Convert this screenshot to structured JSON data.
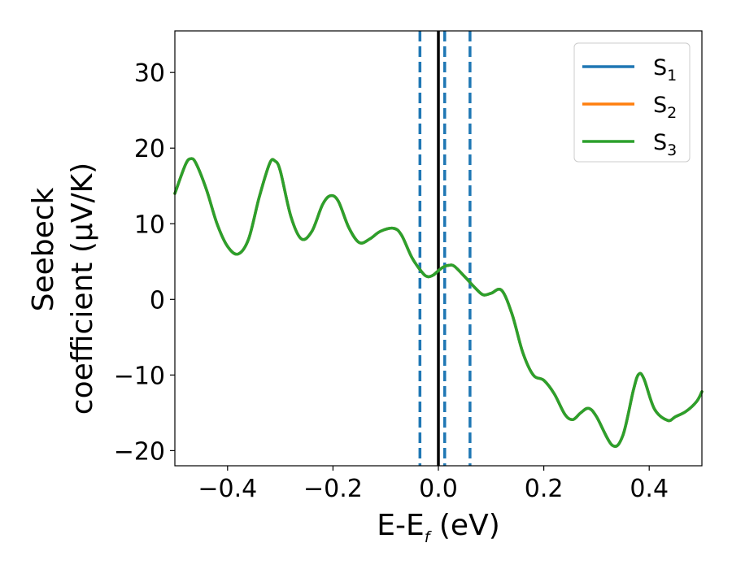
{
  "chart_data": {
    "type": "line",
    "xlabel": {
      "main": "E-E",
      "sub": "f",
      "tail": " (eV)"
    },
    "ylabel": {
      "line1": "Seebeck",
      "line2": "coefficient  (μV/K)"
    },
    "xlim": [
      -0.5,
      0.5
    ],
    "ylim": [
      -22,
      35.5
    ],
    "xticks": [
      -0.4,
      -0.2,
      0.0,
      0.2,
      0.4
    ],
    "xtick_labels": [
      "−0.4",
      "−0.2",
      "0.0",
      "0.2",
      "0.4"
    ],
    "yticks": [
      -20,
      -10,
      0,
      10,
      20,
      30
    ],
    "ytick_labels": [
      "−20",
      "−10",
      "0",
      "10",
      "20",
      "30"
    ],
    "grid": false,
    "legend_position": "top-right",
    "series": [
      {
        "name": "S",
        "name_sub": "1",
        "color": "#1f77b4",
        "x": [
          -0.5,
          -0.48,
          -0.47,
          -0.46,
          -0.44,
          -0.42,
          -0.4,
          -0.38,
          -0.36,
          -0.34,
          -0.32,
          -0.31,
          -0.3,
          -0.28,
          -0.26,
          -0.24,
          -0.22,
          -0.205,
          -0.19,
          -0.17,
          -0.15,
          -0.13,
          -0.11,
          -0.085,
          -0.07,
          -0.05,
          -0.03,
          -0.02,
          -0.01,
          0.0,
          0.01,
          0.02,
          0.03,
          0.05,
          0.07,
          0.085,
          0.1,
          0.12,
          0.14,
          0.16,
          0.18,
          0.2,
          0.22,
          0.24,
          0.255,
          0.27,
          0.285,
          0.3,
          0.33,
          0.35,
          0.37,
          0.38,
          0.39,
          0.41,
          0.435,
          0.45,
          0.47,
          0.49,
          0.5
        ],
        "y": [
          14,
          17.8,
          18.6,
          18,
          14.5,
          10,
          7,
          6,
          8,
          13.5,
          18,
          18.3,
          17,
          11,
          8,
          9,
          12.5,
          13.7,
          13,
          9.5,
          7.5,
          8,
          9,
          9.4,
          8.5,
          5.5,
          3.5,
          3,
          3.2,
          3.8,
          4.3,
          4.5,
          4.4,
          3,
          1.5,
          0.6,
          0.8,
          1.2,
          -2,
          -7,
          -10,
          -10.7,
          -12.5,
          -15.2,
          -15.9,
          -15,
          -14.4,
          -15.5,
          -19.3,
          -18,
          -12,
          -9.9,
          -10.5,
          -14.5,
          -16,
          -15.5,
          -14.8,
          -13.5,
          -12.2
        ]
      },
      {
        "name": "S",
        "name_sub": "2",
        "color": "#ff7f0e",
        "x": [
          -0.5,
          -0.48,
          -0.47,
          -0.46,
          -0.44,
          -0.42,
          -0.4,
          -0.38,
          -0.36,
          -0.34,
          -0.32,
          -0.31,
          -0.3,
          -0.28,
          -0.26,
          -0.24,
          -0.22,
          -0.205,
          -0.19,
          -0.17,
          -0.15,
          -0.13,
          -0.11,
          -0.085,
          -0.07,
          -0.05,
          -0.03,
          -0.02,
          -0.01,
          0.0,
          0.01,
          0.02,
          0.03,
          0.05,
          0.07,
          0.085,
          0.1,
          0.12,
          0.14,
          0.16,
          0.18,
          0.2,
          0.22,
          0.24,
          0.255,
          0.27,
          0.285,
          0.3,
          0.33,
          0.35,
          0.37,
          0.38,
          0.39,
          0.41,
          0.435,
          0.45,
          0.47,
          0.49,
          0.5
        ],
        "y": [
          14,
          17.8,
          18.6,
          18,
          14.5,
          10,
          7,
          6,
          8,
          13.5,
          18,
          18.3,
          17,
          11,
          8,
          9,
          12.5,
          13.7,
          13,
          9.5,
          7.5,
          8,
          9,
          9.4,
          8.5,
          5.5,
          3.5,
          3,
          3.2,
          3.8,
          4.3,
          4.5,
          4.4,
          3,
          1.5,
          0.6,
          0.8,
          1.2,
          -2,
          -7,
          -10,
          -10.7,
          -12.5,
          -15.2,
          -15.9,
          -15,
          -14.4,
          -15.5,
          -19.3,
          -18,
          -12,
          -9.9,
          -10.5,
          -14.5,
          -16,
          -15.5,
          -14.8,
          -13.5,
          -12.2
        ]
      },
      {
        "name": "S",
        "name_sub": "3",
        "color": "#2ca02c",
        "x": [
          -0.5,
          -0.48,
          -0.47,
          -0.46,
          -0.44,
          -0.42,
          -0.4,
          -0.38,
          -0.36,
          -0.34,
          -0.32,
          -0.31,
          -0.3,
          -0.28,
          -0.26,
          -0.24,
          -0.22,
          -0.205,
          -0.19,
          -0.17,
          -0.15,
          -0.13,
          -0.11,
          -0.085,
          -0.07,
          -0.05,
          -0.03,
          -0.02,
          -0.01,
          0.0,
          0.01,
          0.02,
          0.03,
          0.05,
          0.07,
          0.085,
          0.1,
          0.12,
          0.14,
          0.16,
          0.18,
          0.2,
          0.22,
          0.24,
          0.255,
          0.27,
          0.285,
          0.3,
          0.33,
          0.35,
          0.37,
          0.38,
          0.39,
          0.41,
          0.435,
          0.45,
          0.47,
          0.49,
          0.5
        ],
        "y": [
          14,
          17.8,
          18.6,
          18,
          14.5,
          10,
          7,
          6,
          8,
          13.5,
          18,
          18.3,
          17,
          11,
          8,
          9,
          12.5,
          13.7,
          13,
          9.5,
          7.5,
          8,
          9,
          9.4,
          8.5,
          5.5,
          3.5,
          3,
          3.2,
          3.8,
          4.3,
          4.5,
          4.4,
          3,
          1.5,
          0.6,
          0.8,
          1.2,
          -2,
          -7,
          -10,
          -10.7,
          -12.5,
          -15.2,
          -15.9,
          -15,
          -14.4,
          -15.5,
          -19.3,
          -18,
          -12,
          -9.9,
          -10.5,
          -14.5,
          -16,
          -15.5,
          -14.8,
          -13.5,
          -12.2
        ]
      }
    ],
    "vertical_lines": [
      {
        "x": -0.035,
        "style": "dashed",
        "color": "#1f77b4"
      },
      {
        "x": 0.0,
        "style": "solid",
        "color": "#000000"
      },
      {
        "x": 0.012,
        "style": "dashed",
        "color": "#1f77b4"
      },
      {
        "x": 0.06,
        "style": "dashed",
        "color": "#1f77b4"
      }
    ]
  }
}
